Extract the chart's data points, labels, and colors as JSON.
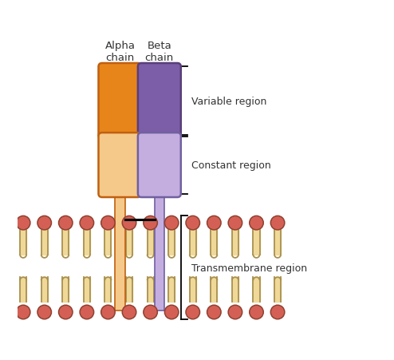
{
  "bg_color": "#ffffff",
  "alpha_var_color": "#E8851A",
  "alpha_var_edge": "#C06010",
  "beta_var_color": "#7B5EA7",
  "beta_var_edge": "#5A3E7A",
  "alpha_const_color": "#F5C98A",
  "alpha_const_edge": "#C06010",
  "beta_const_color": "#C4AEE0",
  "beta_const_edge": "#7060A0",
  "alpha_tm_color": "#F5C98A",
  "alpha_tm_edge": "#C06010",
  "beta_tm_color": "#C4AEE0",
  "beta_tm_edge": "#7060A0",
  "phospholipid_tail_color": "#F0D898",
  "phospholipid_tail_edge": "#A89050",
  "phospholipid_head_color": "#D46055",
  "phospholipid_head_edge": "#904030",
  "label_color": "#333333",
  "title_alpha": "Alpha\nchain",
  "title_beta": "Beta\nchain",
  "label_variable": "Variable region",
  "label_constant": "Constant region",
  "label_transmembrane": "Transmembrane region"
}
